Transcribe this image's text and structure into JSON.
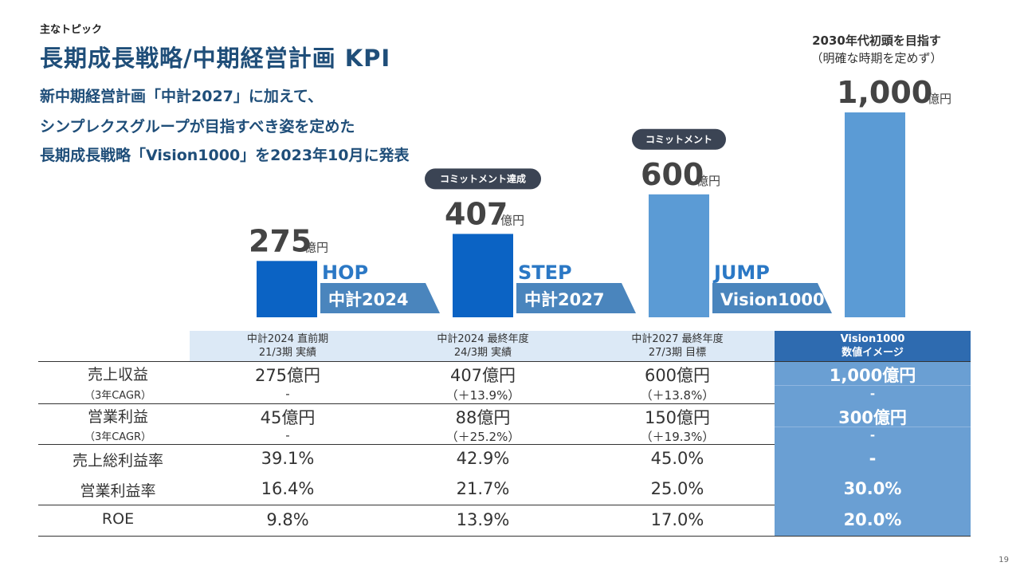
{
  "header": {
    "topic": "主なトピック",
    "title": "長期成長戦略/中期経営計画 KPI",
    "headline_1": "新中期経営計画「中計2027」に加えて、",
    "headline_2": "シンプレクスグループが目指すべき姿を定めた",
    "headline_3": "長期成長戦略「Vision1000」を2023年10月に発表"
  },
  "target_note": {
    "line1": "2030年代初頭を目指す",
    "line2": "（明確な時期を定めず）"
  },
  "chart_data": {
    "type": "bar",
    "categories": [
      "21/3期 実績",
      "24/3期 実績",
      "27/3期 目標",
      "Vision1000"
    ],
    "values": [
      275,
      407,
      600,
      1000
    ],
    "value_labels": [
      "275",
      "407",
      "600",
      "1,000"
    ],
    "unit": "億円",
    "ylim": [
      0,
      1000
    ],
    "badges": [
      {
        "bar_index": 1,
        "text": "コミットメント達成"
      },
      {
        "bar_index": 2,
        "text": "コミットメント"
      }
    ],
    "phases": [
      {
        "label": "HOP",
        "arrow": "中計2024"
      },
      {
        "label": "STEP",
        "arrow": "中計2027"
      },
      {
        "label": "JUMP",
        "arrow": "Vision1000"
      }
    ],
    "colors": {
      "bar_primary": "#0b63c4",
      "bar_secondary": "#5b9bd5",
      "arrow": "#4a85bd",
      "phase_label": "#2b78c5",
      "badge": "#3b4454"
    }
  },
  "table": {
    "columns": [
      {
        "line1": "中計2024 直前期",
        "line2": "21/3期 実績"
      },
      {
        "line1": "中計2024 最終年度",
        "line2": "24/3期 実績"
      },
      {
        "line1": "中計2027 最終年度",
        "line2": "27/3期 目標"
      },
      {
        "line1": "Vision1000",
        "line2": "数値イメージ"
      }
    ],
    "rows": [
      {
        "label": "売上収益",
        "values": [
          "275億円",
          "407億円",
          "600億円",
          "1,000億円"
        ]
      },
      {
        "label": "（3年CAGR）",
        "values": [
          "-",
          "（＋13.9%）",
          "（＋13.8%）",
          "-"
        ]
      },
      {
        "label": "営業利益",
        "values": [
          "45億円",
          "88億円",
          "150億円",
          "300億円"
        ]
      },
      {
        "label": "（3年CAGR）",
        "values": [
          "-",
          "（＋25.2%）",
          "（＋19.3%）",
          "-"
        ]
      },
      {
        "label": "売上総利益率",
        "values": [
          "39.1%",
          "42.9%",
          "45.0%",
          "-"
        ]
      },
      {
        "label": "営業利益率",
        "values": [
          "16.4%",
          "21.7%",
          "25.0%",
          "30.0%"
        ]
      },
      {
        "label": "ROE",
        "values": [
          "9.8%",
          "13.9%",
          "17.0%",
          "20.0%"
        ]
      }
    ]
  },
  "page_number": "19"
}
